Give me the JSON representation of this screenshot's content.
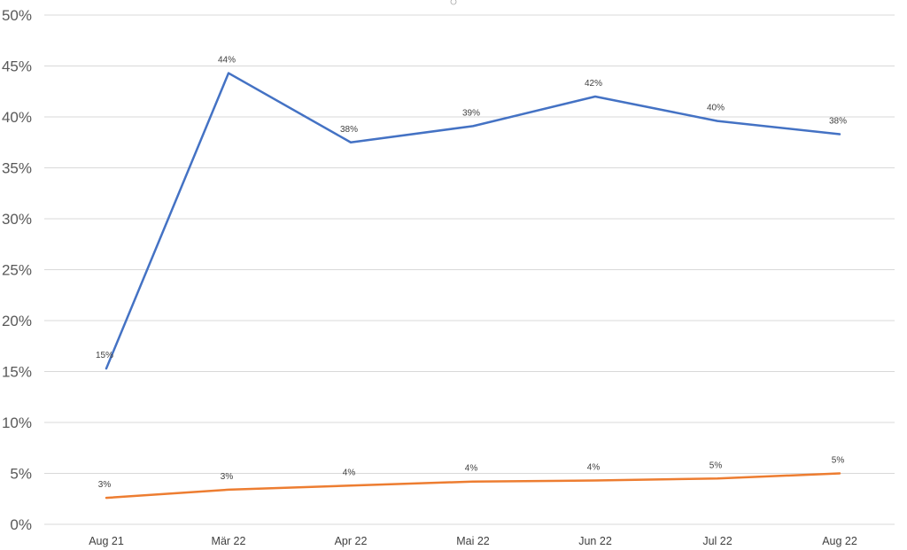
{
  "chart_data": {
    "type": "line",
    "categories": [
      "Aug 21",
      "Mär 22",
      "Apr 22",
      "Mai 22",
      "Jun 22",
      "Jul 22",
      "Aug 22"
    ],
    "series": [
      {
        "color": "#4472c4",
        "values": [
          15.3,
          44.3,
          37.5,
          39.1,
          42.0,
          39.6,
          38.3
        ],
        "labels": [
          "15%",
          "44%",
          "38%",
          "39%",
          "42%",
          "40%",
          "38%"
        ]
      },
      {
        "color": "#ed7d31",
        "values": [
          2.6,
          3.4,
          3.8,
          4.2,
          4.3,
          4.5,
          5.0
        ],
        "labels": [
          "3%",
          "3%",
          "4%",
          "4%",
          "4%",
          "5%",
          "5%"
        ]
      }
    ],
    "ylim": [
      0,
      50
    ],
    "yticks": [
      "0%",
      "5%",
      "10%",
      "15%",
      "20%",
      "25%",
      "30%",
      "35%",
      "40%",
      "45%",
      "50%"
    ],
    "grid": true,
    "legend": "none"
  }
}
